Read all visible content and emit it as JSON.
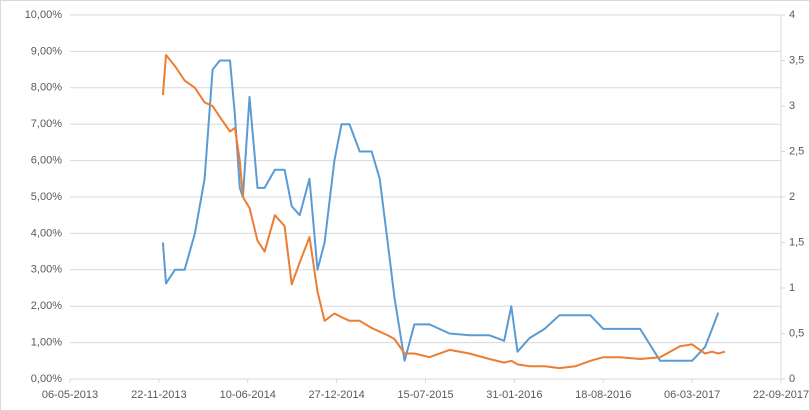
{
  "chart_data": {
    "type": "line",
    "x": [
      "01-12-2013",
      "08-12-2013",
      "28-12-2013",
      "19-01-2014",
      "11-02-2014",
      "05-03-2014",
      "23-03-2014",
      "08-04-2014",
      "01-05-2014",
      "12-05-2014",
      "23-05-2014",
      "30-05-2014",
      "14-06-2014",
      "02-07-2014",
      "18-07-2014",
      "10-08-2014",
      "01-09-2014",
      "17-09-2014",
      "05-10-2014",
      "27-10-2014",
      "14-11-2014",
      "30-11-2014",
      "22-12-2014",
      "07-01-2015",
      "25-01-2015",
      "17-02-2015",
      "16-03-2015",
      "03-04-2015",
      "21-04-2015",
      "06-05-2015",
      "29-05-2015",
      "20-06-2015",
      "24-07-2015",
      "07-09-2015",
      "22-10-2015",
      "06-12-2015",
      "08-01-2016",
      "24-01-2016",
      "07-02-2016",
      "05-03-2016",
      "08-04-2016",
      "11-05-2016",
      "16-06-2016",
      "20-07-2016",
      "18-08-2016",
      "25-09-2016",
      "09-11-2016",
      "24-12-2016",
      "07-02-2017",
      "06-03-2017",
      "04-04-2017",
      "20-04-2017",
      "04-05-2017",
      "19-05-2017"
    ],
    "series": [
      {
        "color": "#5b9bd5",
        "axis": "y2",
        "values": [
          1.5,
          1.05,
          1.2,
          1.2,
          1.6,
          2.2,
          3.4,
          3.5,
          3.5,
          2.9,
          2.1,
          2.0,
          3.1,
          2.1,
          2.1,
          2.3,
          2.3,
          1.9,
          1.8,
          2.2,
          1.2,
          1.5,
          2.4,
          2.8,
          2.8,
          2.5,
          2.5,
          2.2,
          1.5,
          0.9,
          0.2,
          0.6,
          0.6,
          0.5,
          0.48,
          0.48,
          0.42,
          0.8,
          0.3,
          0.45,
          0.55,
          0.7,
          0.7,
          0.7,
          0.55,
          0.55,
          0.55,
          0.2,
          0.2,
          0.2,
          0.35,
          0.55,
          0.73,
          null
        ]
      },
      {
        "color": "#ed7d31",
        "values": [
          7.8,
          8.9,
          8.6,
          8.2,
          8.0,
          7.6,
          7.5,
          7.2,
          6.8,
          6.9,
          6.0,
          5.0,
          4.7,
          3.8,
          3.5,
          4.5,
          4.2,
          2.6,
          3.2,
          3.9,
          2.4,
          1.6,
          1.8,
          1.7,
          1.6,
          1.6,
          1.4,
          1.3,
          1.2,
          1.1,
          0.7,
          0.7,
          0.6,
          0.8,
          0.7,
          0.55,
          0.45,
          0.5,
          0.4,
          0.35,
          0.35,
          0.3,
          0.35,
          0.5,
          0.6,
          0.6,
          0.55,
          0.6,
          0.9,
          0.95,
          0.7,
          0.75,
          0.7,
          0.75
        ]
      }
    ],
    "xlim": [
      "06-05-2013",
      "22-09-2017"
    ],
    "xticks": [
      "06-05-2013",
      "22-11-2013",
      "10-06-2014",
      "27-12-2014",
      "15-07-2015",
      "31-01-2016",
      "18-08-2016",
      "06-03-2017",
      "22-09-2017"
    ],
    "ylim": [
      0,
      10
    ],
    "yticks": [
      {
        "value": 0,
        "label": "0,00%"
      },
      {
        "value": 1,
        "label": "1,00%"
      },
      {
        "value": 2,
        "label": "2,00%"
      },
      {
        "value": 3,
        "label": "3,00%"
      },
      {
        "value": 4,
        "label": "4,00%"
      },
      {
        "value": 5,
        "label": "5,00%"
      },
      {
        "value": 6,
        "label": "6,00%"
      },
      {
        "value": 7,
        "label": "7,00%"
      },
      {
        "value": 8,
        "label": "8,00%"
      },
      {
        "value": 9,
        "label": "9,00%"
      },
      {
        "value": 10,
        "label": "10,00%"
      }
    ],
    "y2lim": [
      0,
      4
    ],
    "y2ticks": [
      0,
      {
        "value": 0.5,
        "label": "0,5"
      },
      1,
      {
        "value": 1.5,
        "label": "1,5"
      },
      2,
      {
        "value": 2.5,
        "label": "2,5"
      },
      3,
      {
        "value": 3.5,
        "label": "3,5"
      },
      4
    ],
    "grid": true
  }
}
